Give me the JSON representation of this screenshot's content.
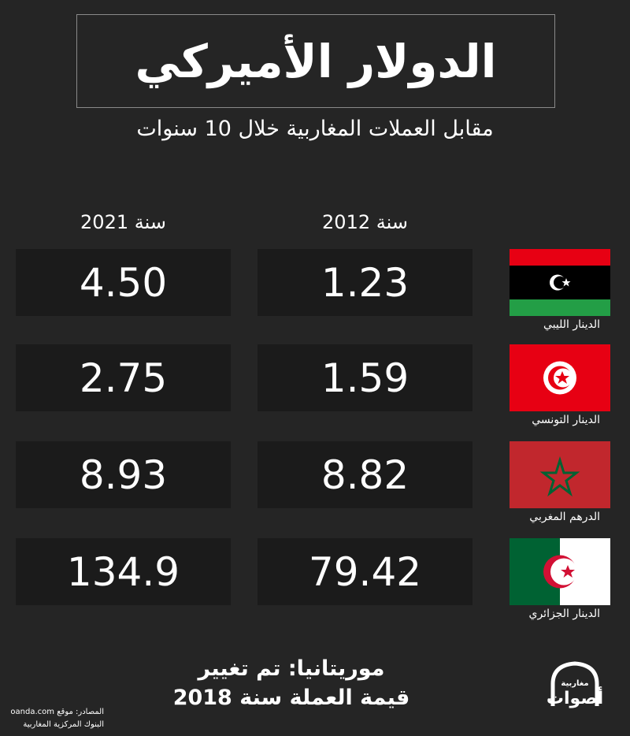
{
  "header": {
    "title": "الدولار الأميركي",
    "subtitle": "مقابل العملات المغاربية خلال 10 سنوات"
  },
  "table": {
    "columns": [
      "سنة 2021",
      "سنة 2012"
    ],
    "rows": [
      {
        "currency": "الدينار الليبي",
        "values": [
          "4.50",
          "1.23"
        ]
      },
      {
        "currency": "الدينار التونسي",
        "values": [
          "2.75",
          "1.59"
        ]
      },
      {
        "currency": "الدرهم المغربي",
        "values": [
          "8.93",
          "8.82"
        ]
      },
      {
        "currency": "الدينار الجزائري",
        "values": [
          "134.9",
          "79.42"
        ]
      }
    ]
  },
  "note": [
    "موريتانيا: تم تغيير",
    "قيمة العملة سنة 2018"
  ],
  "sources": [
    "المصادر: موقع oanda.com",
    "البنوك المركزية المغاربية"
  ],
  "logo": [
    "مغاربية",
    "أصوات"
  ]
}
